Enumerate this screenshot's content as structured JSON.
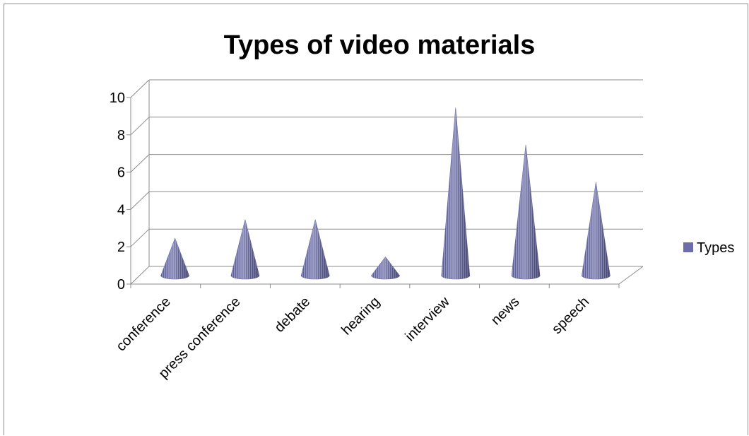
{
  "chart_data": {
    "type": "bar",
    "style": "3d-cone",
    "title": "Types of video materials",
    "xlabel": "",
    "ylabel": "",
    "categories": [
      "conference",
      "press conference",
      "debate",
      "hearing",
      "interview",
      "news",
      "speech"
    ],
    "series": [
      {
        "name": "Types",
        "values": [
          2,
          3,
          3,
          1,
          9,
          7,
          5
        ],
        "color": "#6b6ea8"
      }
    ],
    "ylim": [
      0,
      10
    ],
    "yticks": [
      "0",
      "2",
      "4",
      "6",
      "8",
      "10"
    ],
    "grid": true,
    "legend": "right"
  }
}
